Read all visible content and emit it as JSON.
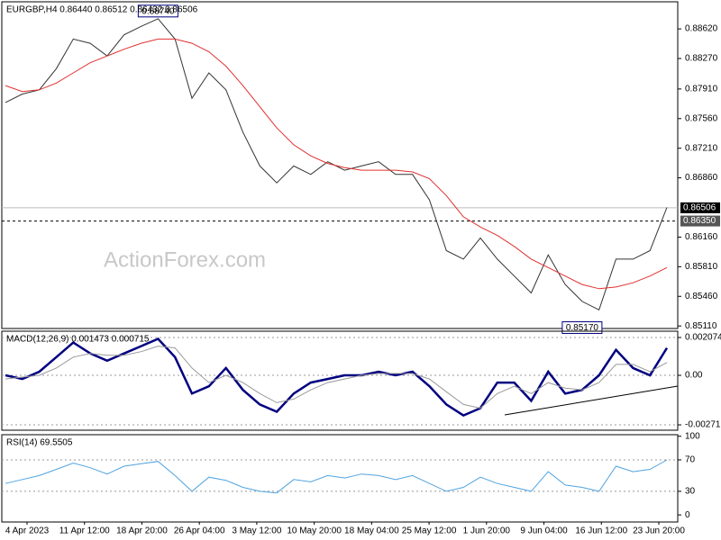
{
  "chart_data": [
    {
      "type": "line",
      "title": "EURGBP,H4  0.86440 0.86512 0.86432 0.86506",
      "watermark": "ActionForex.com",
      "series": [
        {
          "color": "#333333",
          "values": [
            0.8775,
            0.8785,
            0.879,
            0.8815,
            0.885,
            0.8845,
            0.883,
            0.8855,
            0.8865,
            0.8874,
            0.885,
            0.878,
            0.881,
            0.879,
            0.874,
            0.87,
            0.868,
            0.87,
            0.869,
            0.8705,
            0.8695,
            0.87,
            0.8705,
            0.869,
            0.869,
            0.866,
            0.86,
            0.859,
            0.8615,
            0.859,
            0.857,
            0.855,
            0.8595,
            0.856,
            0.854,
            0.853,
            0.859,
            0.859,
            0.86,
            0.8651
          ]
        },
        {
          "color": "#e03030",
          "values": [
            0.8795,
            0.8788,
            0.879,
            0.8798,
            0.881,
            0.8822,
            0.883,
            0.8838,
            0.8845,
            0.885,
            0.885,
            0.8845,
            0.8835,
            0.8818,
            0.8795,
            0.877,
            0.8745,
            0.8725,
            0.8712,
            0.8703,
            0.8698,
            0.8695,
            0.8695,
            0.8695,
            0.8693,
            0.8685,
            0.8665,
            0.864,
            0.8628,
            0.8618,
            0.8605,
            0.859,
            0.858,
            0.857,
            0.856,
            0.8555,
            0.8557,
            0.8562,
            0.857,
            0.858
          ]
        }
      ],
      "ylim": [
        0.8508,
        0.8894
      ],
      "yticks": [
        {
          "value": 0.8862,
          "label": "0.88620"
        },
        {
          "value": 0.8827,
          "label": "0.88270"
        },
        {
          "value": 0.8791,
          "label": "0.87910"
        },
        {
          "value": 0.8756,
          "label": "0.87560"
        },
        {
          "value": 0.8721,
          "label": "0.87210"
        },
        {
          "value": 0.8686,
          "label": "0.86860"
        },
        {
          "value": 0.8616,
          "label": "0.86160"
        },
        {
          "value": 0.8581,
          "label": "0.85810"
        },
        {
          "value": 0.8546,
          "label": "0.85460"
        },
        {
          "value": 0.8511,
          "label": "0.85110"
        }
      ],
      "levels": [
        {
          "value": 0.86506,
          "label": "0.86506",
          "style": "solid",
          "color": "#000000"
        },
        {
          "value": 0.8635,
          "label": "0.86350",
          "style": "dashed",
          "color": "#555555"
        }
      ],
      "annotations": [
        {
          "value": 0.8874,
          "label": "0.88740",
          "index": 9
        },
        {
          "value": 0.8517,
          "label": "0.85170",
          "index": 34
        }
      ]
    },
    {
      "type": "line",
      "title": "MACD(12,26,9) 0.001473 0.000715",
      "series": [
        {
          "color": "#000080",
          "values": [
            0.0,
            -0.0002,
            0.0002,
            0.001,
            0.0018,
            0.0012,
            0.0008,
            0.0012,
            0.0016,
            0.002,
            0.001,
            -0.001,
            -0.0006,
            0.0004,
            -0.0008,
            -0.0016,
            -0.002,
            -0.001,
            -0.0004,
            -0.0002,
            0.0,
            0.0,
            0.0002,
            0.0,
            0.0002,
            -0.0006,
            -0.0016,
            -0.0022,
            -0.0018,
            -0.0004,
            -0.0004,
            -0.0014,
            0.0002,
            -0.001,
            -0.0008,
            0.0,
            0.0014,
            0.0004,
            0.0,
            0.0015
          ]
        },
        {
          "color": "#999999",
          "values": [
            -0.0002,
            -0.0001,
            0.0,
            0.0004,
            0.001,
            0.0012,
            0.0011,
            0.0011,
            0.0013,
            0.0016,
            0.0015,
            0.0004,
            -0.0004,
            0.0,
            -0.0004,
            -0.001,
            -0.0015,
            -0.0013,
            -0.0008,
            -0.0004,
            -0.0002,
            0.0,
            0.0001,
            0.0001,
            0.0001,
            -0.0002,
            -0.0009,
            -0.0016,
            -0.0018,
            -0.001,
            -0.0006,
            -0.001,
            -0.0004,
            -0.0007,
            -0.0008,
            -0.0004,
            0.0006,
            0.0006,
            0.0002,
            0.0007
          ]
        }
      ],
      "ylim": [
        -0.00301,
        0.00242
      ],
      "yticks": [
        0.002074,
        {
          "value": 0,
          "label": "0.00"
        },
        -0.002716
      ]
    },
    {
      "type": "line",
      "title": "RSI(14) 69.5505",
      "series": [
        {
          "color": "#4fa3e0",
          "values": [
            40,
            45,
            50,
            58,
            66,
            60,
            52,
            62,
            65,
            68,
            50,
            30,
            48,
            44,
            35,
            30,
            28,
            45,
            42,
            50,
            47,
            52,
            50,
            45,
            50,
            40,
            30,
            35,
            48,
            40,
            35,
            30,
            55,
            38,
            35,
            30,
            62,
            55,
            58,
            70
          ]
        }
      ],
      "ylim": [
        -9,
        102
      ],
      "yticks": [
        100,
        70,
        30,
        0
      ],
      "xticks": [
        "4 Apr 2023",
        "11 Apr 12:00",
        "18 Apr 20:00",
        "26 Apr 04:00",
        "3 May 12:00",
        "10 May 20:00",
        "18 May 04:00",
        "25 May 12:00",
        "1 Jun 20:00",
        "9 Jun 04:00",
        "16 Jun 12:00",
        "23 Jun 20:00"
      ]
    }
  ]
}
